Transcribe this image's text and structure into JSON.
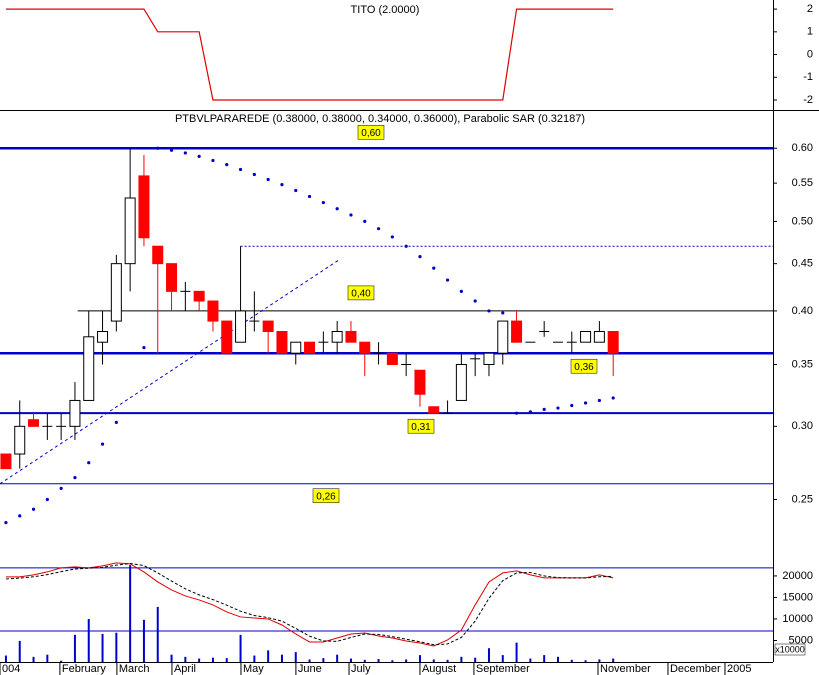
{
  "chart_data": [
    {
      "type": "line",
      "title": "TITO (2.0000)",
      "color": "#e00000",
      "values": [
        2,
        2,
        2,
        2,
        2,
        2,
        2,
        2,
        2,
        2,
        2,
        1,
        1,
        1,
        1,
        -2,
        -2,
        -2,
        -2,
        -2,
        -2,
        -2,
        -2,
        -2,
        -2,
        -2,
        -2,
        -2,
        -2,
        -2,
        -2,
        -2,
        -2,
        -2,
        -2,
        -2,
        -2,
        2,
        2,
        2,
        2,
        2,
        2,
        2,
        2
      ],
      "xlim": [
        -0.43,
        55.58
      ],
      "ylim": [
        -2.44,
        2.4
      ],
      "yticks": [
        2,
        1,
        0,
        -1,
        -2
      ]
    },
    {
      "type": "candlestick",
      "title": "PTBVLPARAREDE (0.38000, 0.38000, 0.34000, 0.36000), Parabolic SAR (0.32187)",
      "open": [
        0.28,
        0.28,
        0.305,
        0.3,
        0.3,
        0.3,
        0.32,
        0.37,
        0.39,
        0.45,
        0.56,
        0.47,
        0.45,
        0.42,
        0.42,
        0.41,
        0.39,
        0.37,
        0.39,
        0.39,
        0.38,
        0.36,
        0.37,
        0.37,
        0.37,
        0.38,
        0.37,
        0.36,
        0.36,
        0.35,
        0.345,
        0.315,
        0.31,
        0.32,
        0.355,
        0.35,
        0.36,
        0.39,
        0.37,
        0.38,
        0.37,
        0.37,
        0.37,
        0.37,
        0.38
      ],
      "high": [
        0.28,
        0.32,
        0.31,
        0.31,
        0.31,
        0.335,
        0.4,
        0.4,
        0.46,
        0.6,
        0.59,
        0.47,
        0.45,
        0.43,
        0.42,
        0.41,
        0.39,
        0.47,
        0.42,
        0.39,
        0.38,
        0.37,
        0.37,
        0.38,
        0.39,
        0.39,
        0.37,
        0.37,
        0.36,
        0.36,
        0.345,
        0.315,
        0.32,
        0.36,
        0.36,
        0.36,
        0.39,
        0.4,
        0.37,
        0.39,
        0.37,
        0.38,
        0.38,
        0.39,
        0.38
      ],
      "low": [
        0.27,
        0.27,
        0.3,
        0.29,
        0.29,
        0.29,
        0.32,
        0.35,
        0.38,
        0.42,
        0.47,
        0.36,
        0.4,
        0.4,
        0.4,
        0.38,
        0.36,
        0.37,
        0.38,
        0.36,
        0.36,
        0.35,
        0.36,
        0.36,
        0.36,
        0.37,
        0.34,
        0.35,
        0.35,
        0.34,
        0.315,
        0.31,
        0.31,
        0.32,
        0.34,
        0.34,
        0.35,
        0.37,
        0.37,
        0.375,
        0.37,
        0.36,
        0.37,
        0.37,
        0.34
      ],
      "close": [
        0.27,
        0.3,
        0.3,
        0.3,
        0.3,
        0.32,
        0.375,
        0.38,
        0.45,
        0.53,
        0.48,
        0.45,
        0.42,
        0.42,
        0.41,
        0.39,
        0.36,
        0.4,
        0.39,
        0.38,
        0.36,
        0.37,
        0.36,
        0.37,
        0.38,
        0.37,
        0.36,
        0.36,
        0.35,
        0.35,
        0.325,
        0.31,
        0.31,
        0.35,
        0.355,
        0.36,
        0.39,
        0.37,
        0.37,
        0.38,
        0.37,
        0.37,
        0.38,
        0.38,
        0.36
      ],
      "up_color": "#ffffff",
      "down_color": "#ff0000",
      "sar": [
        0.236,
        0.24,
        0.244,
        0.25,
        0.257,
        0.264,
        0.274,
        0.287,
        0.303,
        null,
        0.365,
        0.6,
        0.597,
        0.593,
        0.588,
        0.582,
        0.576,
        0.569,
        0.562,
        0.555,
        0.548,
        0.54,
        0.532,
        0.524,
        0.516,
        0.508,
        0.5,
        0.491,
        0.481,
        0.47,
        0.458,
        0.445,
        0.432,
        0.42,
        0.41,
        0.4,
        0.398,
        0.31,
        0.311,
        0.313,
        0.314,
        0.316,
        0.318,
        0.32,
        0.322
      ],
      "sar_color": "#0000cc",
      "levels": [
        {
          "value": 0.6,
          "label": "0,60"
        },
        {
          "value": 0.4,
          "label": "0,40"
        },
        {
          "value": 0.36,
          "label": "0,36"
        },
        {
          "value": 0.31,
          "label": "0,31"
        },
        {
          "value": 0.26,
          "label": "0,26"
        }
      ],
      "dotted_level": 0.47,
      "trendline": [
        0.26,
        0.455
      ],
      "xlim": [
        -0.43,
        55.58
      ],
      "ylim": [
        0.215,
        0.66
      ],
      "log": true,
      "yticks": [
        {
          "value": 0.6,
          "label": "0.60"
        },
        0.55,
        {
          "value": 0.5,
          "label": "0.50"
        },
        0.45,
        {
          "value": 0.4,
          "label": "0.40"
        },
        0.35,
        {
          "value": 0.3,
          "label": "0.30"
        },
        0.25
      ]
    },
    {
      "type": "bar",
      "color": "#0000cc",
      "values": [
        1500,
        4900,
        1200,
        1700,
        300,
        6300,
        10000,
        6500,
        6800,
        22500,
        9800,
        12800,
        1700,
        1200,
        800,
        1000,
        900,
        6300,
        1500,
        2700,
        1700,
        2300,
        600,
        900,
        1700,
        800,
        500,
        700,
        400,
        600,
        1600,
        600,
        500,
        1200,
        1000,
        3200,
        1600,
        4500,
        800,
        1600,
        1200,
        500,
        400,
        600,
        800
      ],
      "series": [
        {
          "color": "#e00000",
          "values": [
            19770,
            19770,
            20240,
            20930,
            21860,
            22100,
            21860,
            22330,
            23030,
            22800,
            20930,
            18600,
            16750,
            15350,
            14420,
            13260,
            11630,
            10470,
            10230,
            10000,
            8600,
            6510,
            4650,
            4650,
            5580,
            6510,
            6750,
            6050,
            5580,
            4880,
            4420,
            3720,
            5120,
            7440,
            13260,
            18600,
            20700,
            21170,
            20240,
            19540,
            19540,
            19540,
            19540,
            20240,
            19540
          ]
        },
        {
          "color": "#000000",
          "values": [
            19300,
            19500,
            19800,
            20300,
            21000,
            21600,
            21800,
            22000,
            22500,
            22900,
            22400,
            20700,
            18800,
            17000,
            15600,
            14500,
            13200,
            11800,
            10800,
            10300,
            9500,
            7800,
            6000,
            4900,
            4800,
            5700,
            6500,
            6400,
            5900,
            5300,
            4700,
            4000,
            4200,
            5700,
            9500,
            14800,
            18900,
            20700,
            20800,
            20000,
            19600,
            19540,
            19540,
            19800,
            19900
          ]
        }
      ],
      "levels": [
        21860,
        7200
      ],
      "unit_label": "x10000",
      "xlim": [
        -0.43,
        55.58
      ],
      "ylim": [
        0,
        23700
      ],
      "yticks": [
        20000,
        15000,
        10000,
        5000
      ],
      "xticks": [
        {
          "value": -0.43,
          "label": "004"
        },
        {
          "value": 3.91,
          "label": "February"
        },
        {
          "value": 8.04,
          "label": "March"
        },
        {
          "value": 12.03,
          "label": "April"
        },
        {
          "value": 17.03,
          "label": "May"
        },
        {
          "value": 21.01,
          "label": "June"
        },
        {
          "value": 24.86,
          "label": "July"
        },
        {
          "value": 30.0,
          "label": "August"
        },
        {
          "value": 33.91,
          "label": "September"
        },
        {
          "value": 42.9,
          "label": "November"
        },
        {
          "value": 47.97,
          "label": "December"
        },
        {
          "value": 52.1,
          "label": "2005"
        }
      ]
    }
  ]
}
